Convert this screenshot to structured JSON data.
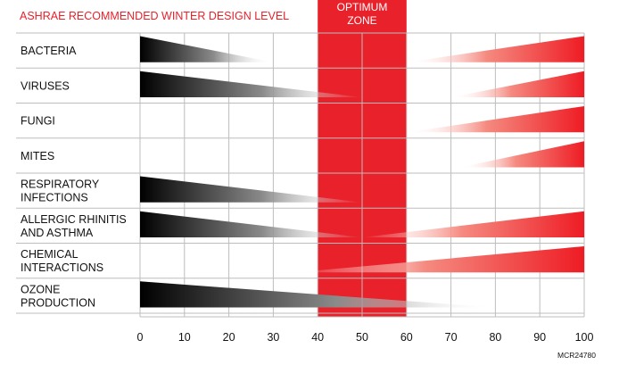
{
  "chart_data": {
    "type": "humidity-effect-wedge-chart",
    "header": "ASHRAE RECOMMENDED WINTER DESIGN LEVEL",
    "optimum_zone": {
      "label_line1": "OPTIMUM",
      "label_line2": "ZONE",
      "range": [
        40,
        60
      ]
    },
    "xlim": [
      0,
      100
    ],
    "x_ticks": [
      0,
      10,
      20,
      30,
      40,
      50,
      60,
      70,
      80,
      90,
      100
    ],
    "code": "MCR24780",
    "rows": [
      {
        "label": [
          "BACTERIA"
        ],
        "dry": [
          0,
          30
        ],
        "wet": [
          60,
          100
        ]
      },
      {
        "label": [
          "VIRUSES"
        ],
        "dry": [
          0,
          50
        ],
        "wet": [
          70,
          100
        ]
      },
      {
        "label": [
          "FUNGI"
        ],
        "dry": null,
        "wet": [
          60,
          100
        ]
      },
      {
        "label": [
          "MITES"
        ],
        "dry": null,
        "wet": [
          72,
          100
        ]
      },
      {
        "label": [
          "RESPIRATORY",
          "INFECTIONS"
        ],
        "dry": [
          0,
          50
        ],
        "wet": null
      },
      {
        "label": [
          "ALLERGIC RHINITIS",
          "AND ASTHMA"
        ],
        "dry": [
          0,
          50
        ],
        "wet": [
          50,
          100
        ]
      },
      {
        "label": [
          "CHEMICAL",
          "INTERACTIONS"
        ],
        "dry": null,
        "wet": [
          35,
          100
        ]
      },
      {
        "label": [
          "OZONE",
          "PRODUCTION"
        ],
        "dry": [
          0,
          80
        ],
        "wet": null
      }
    ],
    "colors": {
      "header": "#e8212b",
      "zone": "#e8212b",
      "dry": "#000000",
      "wet": "#ee2b2b",
      "grid": "#bdbdbd"
    }
  }
}
